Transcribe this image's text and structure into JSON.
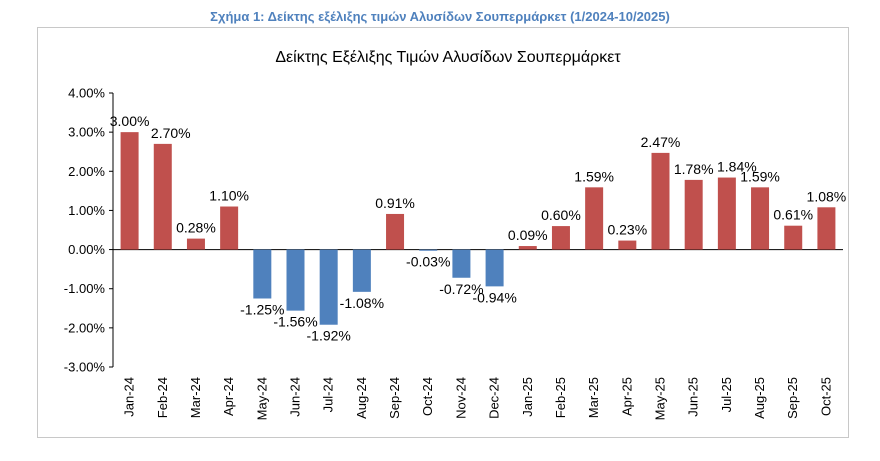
{
  "caption": "Σχήμα 1: Δείκτης εξέλιξης τιμών Αλυσίδων Σουπερμάρκετ (1/2024-10/2025)",
  "chart_data": {
    "type": "bar",
    "title": "Δείκτης Εξέλιξης Τιμών Αλυσίδων Σουπερμάρκετ",
    "xlabel": "",
    "ylabel": "",
    "categories": [
      "Jan-24",
      "Feb-24",
      "Mar-24",
      "Apr-24",
      "May-24",
      "Jun-24",
      "Jul-24",
      "Aug-24",
      "Sep-24",
      "Oct-24",
      "Nov-24",
      "Dec-24",
      "Jan-25",
      "Feb-25",
      "Mar-25",
      "Apr-25",
      "May-25",
      "Jun-25",
      "Jul-25",
      "Aug-25",
      "Sep-25",
      "Oct-25"
    ],
    "values": [
      3.0,
      2.7,
      0.28,
      1.1,
      -1.25,
      -1.56,
      -1.92,
      -1.08,
      0.91,
      -0.03,
      -0.72,
      -0.94,
      0.09,
      0.6,
      1.59,
      0.23,
      2.47,
      1.78,
      1.84,
      1.59,
      0.61,
      1.08
    ],
    "data_labels": [
      "3.00%",
      "2.70%",
      "0.28%",
      "1.10%",
      "-1.25%",
      "-1.56%",
      "-1.92%",
      "-1.08%",
      "0.91%",
      "-0.03%",
      "-0.72%",
      "-0.94%",
      "0.09%",
      "0.60%",
      "1.59%",
      "0.23%",
      "2.47%",
      "1.78%",
      "1.84%",
      "1.59%",
      "0.61%",
      "1.08%"
    ],
    "y_ticks": [
      "4.00%",
      "3.00%",
      "2.00%",
      "1.00%",
      "0.00%",
      "-1.00%",
      "-2.00%",
      "-3.00%"
    ],
    "y_tick_values": [
      4,
      3,
      2,
      1,
      0,
      -1,
      -2,
      -3
    ],
    "ylim": [
      -3,
      4
    ],
    "grid": false,
    "legend": "none",
    "colors": {
      "positive": "#c0504d",
      "negative": "#4f81bd",
      "caption": "#4f81bd"
    }
  }
}
